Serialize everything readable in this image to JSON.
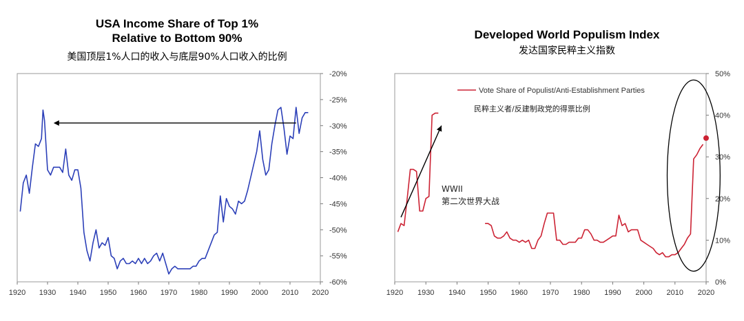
{
  "chart_data": [
    {
      "type": "line",
      "title": "USA Income Share of Top 1%",
      "title_line2": "Relative to Bottom 90%",
      "subtitle": "美国顶层1%人口的收入与底层90%人口收入的比例",
      "xlim": [
        1920,
        2020
      ],
      "ylim": [
        -60,
        -20
      ],
      "x_ticks": [
        1920,
        1930,
        1940,
        1950,
        1960,
        1970,
        1980,
        1990,
        2000,
        2010,
        2020
      ],
      "y_ticks": [
        -20,
        -25,
        -30,
        -35,
        -40,
        -45,
        -50,
        -55,
        -60
      ],
      "y_tick_labels": [
        "-20%",
        "-25%",
        "-30%",
        "-35%",
        "-40%",
        "-45%",
        "-50%",
        "-55%",
        "-60%"
      ],
      "y_axis_side": "right",
      "color": "#2b3fb8",
      "series": [
        {
          "name": "USA Income Share of Top 1% Relative to Bottom 90%",
          "x": [
            1921,
            1922,
            1923,
            1924,
            1925,
            1926,
            1927,
            1928,
            1928.5,
            1929,
            1930,
            1931,
            1932,
            1933,
            1934,
            1935,
            1936,
            1937,
            1938,
            1939,
            1940,
            1941,
            1942,
            1943,
            1944,
            1945,
            1946,
            1947,
            1948,
            1949,
            1950,
            1951,
            1952,
            1953,
            1954,
            1955,
            1956,
            1957,
            1958,
            1959,
            1960,
            1961,
            1962,
            1963,
            1964,
            1965,
            1966,
            1967,
            1968,
            1969,
            1970,
            1971,
            1972,
            1973,
            1974,
            1975,
            1976,
            1977,
            1978,
            1979,
            1980,
            1981,
            1982,
            1983,
            1984,
            1985,
            1986,
            1987,
            1988,
            1989,
            1990,
            1991,
            1992,
            1993,
            1994,
            1995,
            1996,
            1997,
            1998,
            1999,
            2000,
            2001,
            2002,
            2003,
            2004,
            2005,
            2006,
            2007,
            2008,
            2009,
            2010,
            2011,
            2012,
            2013,
            2014,
            2015,
            2016
          ],
          "y": [
            -46.5,
            -41,
            -39.5,
            -43,
            -38,
            -33.5,
            -34,
            -32.5,
            -27,
            -29,
            -38.5,
            -39.5,
            -38,
            -38,
            -38,
            -39,
            -34.5,
            -39.5,
            -40.5,
            -38.5,
            -38.5,
            -42,
            -50.5,
            -54,
            -56,
            -52.5,
            -50,
            -53.5,
            -52.5,
            -53,
            -51.5,
            -55,
            -55.5,
            -57.5,
            -56,
            -55.5,
            -56.5,
            -56.5,
            -56,
            -56.5,
            -55.5,
            -56.5,
            -55.5,
            -56.5,
            -56,
            -55,
            -54.5,
            -56,
            -54.5,
            -56.5,
            -58.5,
            -57.5,
            -57,
            -57.5,
            -57.5,
            -57.5,
            -57.5,
            -57.5,
            -57,
            -57,
            -56,
            -55.5,
            -55.5,
            -54,
            -52.5,
            -51,
            -50.5,
            -43.5,
            -48.5,
            -44,
            -45.5,
            -46,
            -47,
            -44.5,
            -45,
            -44.5,
            -42.5,
            -40,
            -37.5,
            -35,
            -31,
            -36.5,
            -39.5,
            -38.5,
            -33.5,
            -30,
            -27,
            -26.5,
            -30.5,
            -35.5,
            -32,
            -32.5,
            -26.5,
            -31.5,
            -28.5,
            -27.5,
            -27.5
          ]
        }
      ],
      "arrow": {
        "from_x": 2012,
        "from_y": -29.5,
        "to_x": 1932,
        "to_y": -29.5
      }
    },
    {
      "type": "line",
      "title": "Developed World Populism Index",
      "subtitle": "发达国家民粹主义指数",
      "xlim": [
        1920,
        2020
      ],
      "ylim": [
        0,
        50
      ],
      "x_ticks": [
        1920,
        1930,
        1940,
        1950,
        1960,
        1970,
        1980,
        1990,
        2000,
        2010,
        2020
      ],
      "y_ticks": [
        0,
        10,
        20,
        30,
        40,
        50
      ],
      "y_tick_labels": [
        "0%",
        "10%",
        "20%",
        "30%",
        "40%",
        "50%"
      ],
      "y_axis_side": "right",
      "color": "#cc2233",
      "legend": "Vote Share of Populist/Anti-Establishment Parties",
      "legend_cn": "民粹主义者/反建制政党的得票比例",
      "annotation_en": "WWII",
      "annotation_cn": "第二次世界大战",
      "series": [
        {
          "name": "Vote Share of Populist/Anti-Establishment Parties",
          "segments": [
            {
              "x": [
                1921,
                1922,
                1923,
                1924,
                1925,
                1926,
                1927,
                1928,
                1929,
                1930,
                1931,
                1932,
                1933,
                1934
              ],
              "y": [
                12,
                14,
                13.5,
                20,
                27,
                27,
                26.5,
                17,
                17,
                20,
                20.5,
                40,
                40.5,
                40.5
              ]
            },
            {
              "x": [
                1949,
                1950,
                1951,
                1952,
                1953,
                1954,
                1955,
                1956,
                1957,
                1958,
                1959,
                1960,
                1961,
                1962,
                1963,
                1964,
                1965,
                1966,
                1967,
                1968,
                1969,
                1970,
                1971,
                1972,
                1973,
                1974,
                1975,
                1976,
                1977,
                1978,
                1979,
                1980,
                1981,
                1982,
                1983,
                1984,
                1985,
                1986,
                1987,
                1988,
                1989,
                1990,
                1991,
                1992,
                1993,
                1994,
                1995,
                1996,
                1997,
                1998,
                1999,
                2000,
                2001,
                2002,
                2003,
                2004,
                2005,
                2006,
                2007,
                2008,
                2009,
                2010,
                2011,
                2012,
                2013,
                2014,
                2015,
                2016,
                2017,
                2018,
                2019
              ],
              "y": [
                14,
                14,
                13.5,
                11,
                10.5,
                10.5,
                11,
                12,
                10.5,
                10,
                10,
                9.5,
                10,
                9.5,
                10,
                8,
                8,
                10,
                11,
                14,
                16.5,
                16.5,
                16.5,
                10,
                10,
                9,
                9,
                9.5,
                9.5,
                9.5,
                10.5,
                10.5,
                12.5,
                12.5,
                11.5,
                10,
                10,
                9.5,
                9.5,
                10,
                10.5,
                11,
                11,
                16,
                13.5,
                14,
                12,
                12.5,
                12.5,
                12.5,
                10,
                9.5,
                9,
                8.5,
                8,
                7,
                6.5,
                7,
                6,
                6,
                6.5,
                6.5,
                7,
                8,
                9,
                10.5,
                11.5,
                29.5,
                30.5,
                32,
                33
              ]
            }
          ]
        }
      ],
      "highlight_point": {
        "x": 2020,
        "y": 34.5
      },
      "arrow": {
        "from_x": 1922,
        "from_y": 15.5,
        "to_x": 1935,
        "to_y": 37.5
      },
      "ellipse": {
        "cx": 2016,
        "cy": 25.5,
        "rx": 8.5,
        "ry": 45
      }
    }
  ]
}
